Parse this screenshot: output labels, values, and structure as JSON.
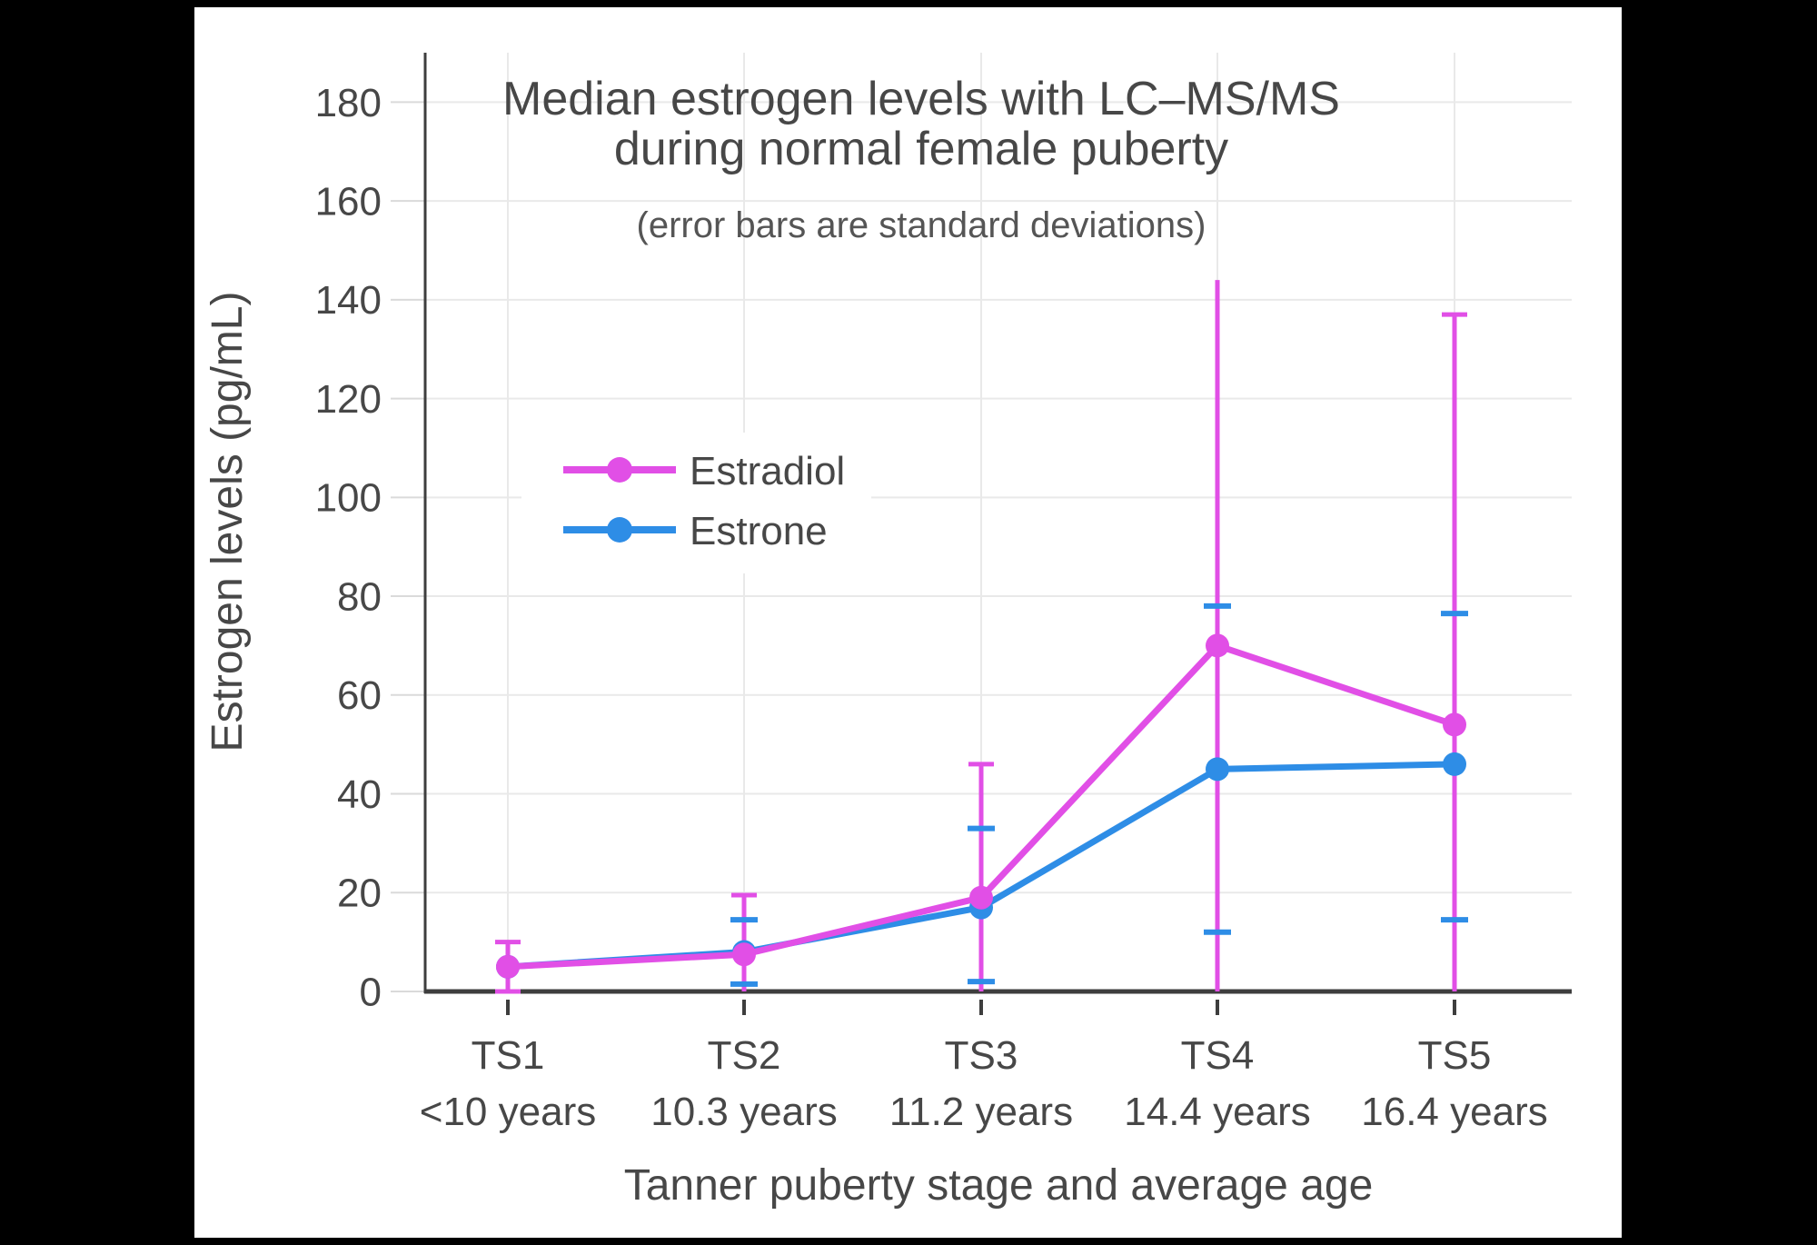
{
  "page": {
    "background": "#000000",
    "canvas_background": "#ffffff"
  },
  "chart_data": {
    "type": "line",
    "title": "Median estrogen levels with LC–MS/MS",
    "title_line2": "during normal female puberty",
    "subtitle": "(error bars are standard deviations)",
    "xlabel": "Tanner puberty stage and average age",
    "ylabel": "Estrogen levels (pg/mL)",
    "ylim": [
      0,
      190
    ],
    "yticks": [
      0,
      20,
      40,
      60,
      80,
      100,
      120,
      140,
      160,
      180
    ],
    "grid": true,
    "background": "#ffffff",
    "legend": {
      "position": "inside upper-left",
      "entries": [
        "Estradiol",
        "Estrone"
      ]
    },
    "categories": [
      "TS1",
      "TS2",
      "TS3",
      "TS4",
      "TS5"
    ],
    "category_sublabels": [
      "<10 years",
      "10.3 years",
      "11.2 years",
      "14.4 years",
      "16.4 years"
    ],
    "colors": {
      "estradiol": "#E14FE6",
      "estrone": "#2E8DE6",
      "gridline": "#E9E9E9",
      "axis": "#3E3E3E",
      "text": "#474747"
    },
    "series": [
      {
        "name": "Estradiol",
        "color": "#E14FE6",
        "marker": "circle",
        "values": [
          5,
          7.5,
          19,
          70,
          54
        ],
        "error_bars": {
          "style": "line-with-caps",
          "low": [
            0,
            0,
            0,
            0,
            0
          ],
          "high": [
            10,
            19.5,
            46,
            144,
            137
          ],
          "cap_low": [
            true,
            false,
            false,
            false,
            false
          ],
          "cap_high": [
            true,
            true,
            true,
            false,
            true
          ]
        }
      },
      {
        "name": "Estrone",
        "color": "#2E8DE6",
        "marker": "circle",
        "values": [
          5,
          8,
          17,
          45,
          46
        ],
        "error_bars": {
          "style": "ticks-only",
          "low": [
            null,
            1.5,
            2,
            12,
            14.5
          ],
          "high": [
            null,
            14.5,
            33,
            78,
            76.5
          ],
          "cap_low": [
            false,
            true,
            true,
            true,
            true
          ],
          "cap_high": [
            false,
            true,
            true,
            true,
            true
          ]
        }
      }
    ]
  }
}
